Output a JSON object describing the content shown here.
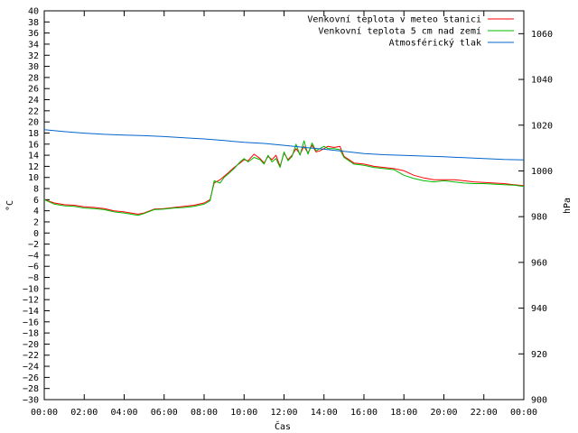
{
  "chart_data": {
    "type": "line",
    "xlabel": "Čas",
    "ylabel_left": "°C",
    "ylabel_right": "hPa",
    "xlim": [
      0,
      24
    ],
    "ylim_left": [
      -30,
      40
    ],
    "ylim_right": [
      900,
      1070
    ],
    "x_ticks": [
      "00:00",
      "02:00",
      "04:00",
      "06:00",
      "08:00",
      "10:00",
      "12:00",
      "14:00",
      "16:00",
      "18:00",
      "20:00",
      "22:00",
      "00:00"
    ],
    "y_ticks_left": [
      40,
      38,
      36,
      34,
      32,
      30,
      28,
      26,
      24,
      22,
      20,
      18,
      16,
      14,
      12,
      10,
      8,
      6,
      4,
      2,
      0,
      -2,
      -4,
      -6,
      -8,
      -10,
      -12,
      -14,
      -16,
      -18,
      -20,
      -22,
      -24,
      -26,
      -28,
      -30
    ],
    "y_ticks_right": [
      1060,
      1040,
      1020,
      1000,
      980,
      960,
      940,
      920,
      900
    ],
    "grid": false,
    "legend_position": "top-right",
    "series": [
      {
        "name": "Venkovní teplota v meteo stanici",
        "axis": "left",
        "color": "#ff0000",
        "x": [
          0,
          0.5,
          1,
          1.5,
          2,
          2.5,
          3,
          3.5,
          4,
          4.5,
          4.7,
          5,
          5.5,
          6,
          6.5,
          7,
          7.5,
          8,
          8.3,
          8.5,
          8.8,
          9,
          9.2,
          9.5,
          9.8,
          10,
          10.2,
          10.5,
          10.8,
          11,
          11.2,
          11.4,
          11.6,
          11.8,
          12,
          12.2,
          12.4,
          12.6,
          12.8,
          13,
          13.2,
          13.4,
          13.6,
          13.8,
          14,
          14.2,
          14.5,
          14.8,
          15,
          15.5,
          16,
          16.5,
          17,
          17.5,
          18,
          18.5,
          19,
          19.5,
          20,
          20.5,
          21,
          21.5,
          22,
          22.5,
          23,
          23.5,
          24
        ],
        "values": [
          6.0,
          5.4,
          5.1,
          5.0,
          4.7,
          4.6,
          4.4,
          4.0,
          3.8,
          3.5,
          3.4,
          3.6,
          4.3,
          4.4,
          4.6,
          4.8,
          5.0,
          5.4,
          6.0,
          9.0,
          9.6,
          10.2,
          10.8,
          11.8,
          12.6,
          13.2,
          13.0,
          14.2,
          13.4,
          12.6,
          13.8,
          13.2,
          14.0,
          12.0,
          14.4,
          13.2,
          14.0,
          15.2,
          14.2,
          15.6,
          14.4,
          15.8,
          14.6,
          14.8,
          15.2,
          15.6,
          15.4,
          15.6,
          13.8,
          12.6,
          12.4,
          12.0,
          11.8,
          11.6,
          11.2,
          10.4,
          9.9,
          9.6,
          9.6,
          9.6,
          9.4,
          9.2,
          9.1,
          9.0,
          8.9,
          8.7,
          8.5
        ]
      },
      {
        "name": "Venkovní teplota 5 cm nad zemí",
        "axis": "left",
        "color": "#00bb00",
        "x": [
          0,
          0.5,
          1,
          1.5,
          2,
          2.5,
          3,
          3.5,
          4,
          4.5,
          4.7,
          5,
          5.5,
          6,
          6.5,
          7,
          7.5,
          8,
          8.3,
          8.5,
          8.8,
          9,
          9.2,
          9.5,
          9.8,
          10,
          10.2,
          10.5,
          10.8,
          11,
          11.2,
          11.4,
          11.6,
          11.8,
          12,
          12.2,
          12.4,
          12.6,
          12.8,
          13,
          13.2,
          13.4,
          13.6,
          13.8,
          14,
          14.2,
          14.5,
          14.8,
          15,
          15.5,
          16,
          16.5,
          17,
          17.5,
          18,
          18.5,
          19,
          19.5,
          20,
          20.5,
          21,
          21.5,
          22,
          22.5,
          23,
          23.5,
          24
        ],
        "values": [
          6.0,
          5.2,
          4.9,
          4.8,
          4.5,
          4.4,
          4.2,
          3.8,
          3.6,
          3.3,
          3.2,
          3.5,
          4.2,
          4.3,
          4.5,
          4.6,
          4.8,
          5.2,
          5.8,
          9.4,
          9.0,
          10.0,
          10.6,
          11.6,
          12.8,
          13.4,
          12.8,
          13.6,
          13.2,
          12.4,
          14.0,
          12.8,
          13.4,
          11.8,
          14.6,
          13.0,
          13.8,
          16.0,
          14.0,
          16.6,
          14.2,
          16.2,
          14.8,
          15.2,
          15.6,
          15.2,
          15.2,
          15.0,
          13.6,
          12.4,
          12.2,
          11.8,
          11.6,
          11.4,
          10.4,
          9.8,
          9.4,
          9.2,
          9.4,
          9.2,
          9.0,
          8.9,
          8.9,
          8.8,
          8.7,
          8.6,
          8.4
        ]
      },
      {
        "name": "Atmosférický tlak",
        "axis": "right",
        "color": "#0066cc",
        "x": [
          0,
          1,
          2,
          3,
          4,
          5,
          6,
          7,
          8,
          9,
          10,
          11,
          12,
          13,
          14,
          15,
          16,
          17,
          18,
          19,
          20,
          21,
          22,
          23,
          24
        ],
        "values": [
          1018.0,
          1017.2,
          1016.5,
          1016.0,
          1015.7,
          1015.4,
          1015.0,
          1014.5,
          1014.0,
          1013.3,
          1012.5,
          1012.0,
          1011.2,
          1010.3,
          1009.5,
          1008.6,
          1007.6,
          1007.1,
          1006.8,
          1006.5,
          1006.2,
          1005.8,
          1005.4,
          1005.0,
          1004.8
        ]
      }
    ]
  }
}
